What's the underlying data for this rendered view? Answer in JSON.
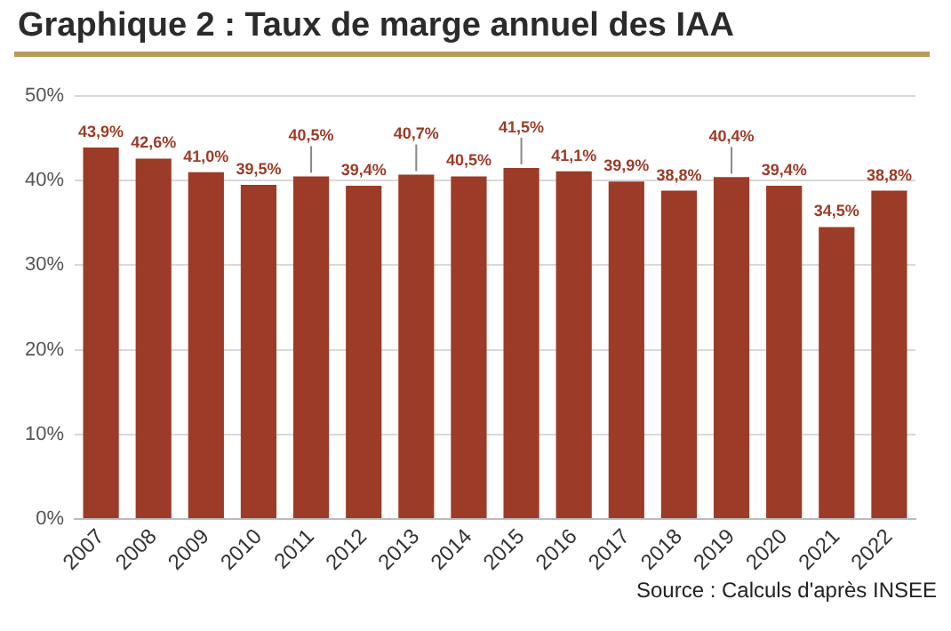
{
  "chart_data": {
    "type": "bar",
    "title": "Graphique 2 : Taux de marge annuel des IAA",
    "categories": [
      "2007",
      "2008",
      "2009",
      "2010",
      "2011",
      "2012",
      "2013",
      "2014",
      "2015",
      "2016",
      "2017",
      "2018",
      "2019",
      "2020",
      "2021",
      "2022"
    ],
    "values": [
      43.9,
      42.6,
      41.0,
      39.5,
      40.5,
      39.4,
      40.7,
      40.5,
      41.5,
      41.1,
      39.9,
      38.8,
      40.4,
      39.4,
      34.5,
      38.8
    ],
    "value_labels": [
      "43,9%",
      "42,6%",
      "41,0%",
      "39,5%",
      "40,5%",
      "39,4%",
      "40,7%",
      "40,5%",
      "41,5%",
      "41,1%",
      "39,9%",
      "38,8%",
      "40,4%",
      "39,4%",
      "34,5%",
      "38,8%"
    ],
    "color": "#9c3b27",
    "ylim": [
      0,
      50
    ],
    "yticks": [
      {
        "value": 0,
        "label": "0%"
      },
      {
        "value": 10,
        "label": "10%"
      },
      {
        "value": 20,
        "label": "20%"
      },
      {
        "value": 30,
        "label": "30%"
      },
      {
        "value": 40,
        "label": "40%"
      },
      {
        "value": 50,
        "label": "50%"
      }
    ],
    "grid": "y",
    "legend": false,
    "annotations": [
      "Source : Calculs d'après INSEE"
    ]
  }
}
